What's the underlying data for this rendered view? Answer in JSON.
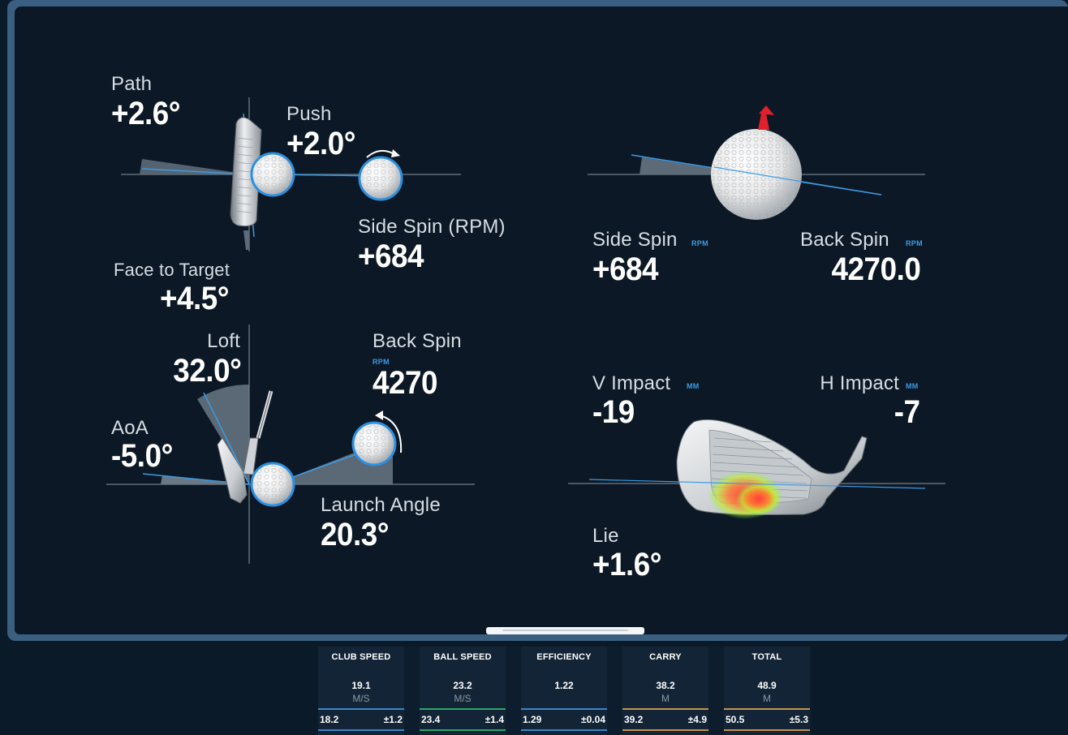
{
  "face_view": {
    "path_label": "Path",
    "path_value": "+2.6°",
    "push_label": "Push",
    "push_value": "+2.0°",
    "side_spin_label": "Side Spin (RPM)",
    "side_spin_value": "+684",
    "face_label": "Face to Target",
    "face_value": "+4.5°"
  },
  "ball_view": {
    "side_spin_label": "Side Spin",
    "side_spin_unit": "RPM",
    "side_spin_value": "+684",
    "back_spin_label": "Back Spin",
    "back_spin_unit": "RPM",
    "back_spin_value": "4270.0"
  },
  "side_view": {
    "loft_label": "Loft",
    "loft_value": "32.0°",
    "aoa_label": "AoA",
    "aoa_value": "-5.0°",
    "back_spin_label": "Back Spin",
    "back_spin_unit": "RPM",
    "back_spin_value": "4270",
    "launch_label": "Launch Angle",
    "launch_value": "20.3°"
  },
  "impact_view": {
    "v_label": "V Impact",
    "v_unit": "MM",
    "v_value": "-19",
    "h_label": "H Impact",
    "h_unit": "MM",
    "h_value": "-7",
    "lie_label": "Lie",
    "lie_value": "+1.6°"
  },
  "stats": [
    {
      "header": "CLUB SPEED",
      "value": "19.1",
      "unit": "M/S",
      "avg": "18.2",
      "dev": "±1.2",
      "color": "#3a86c8"
    },
    {
      "header": "BALL SPEED",
      "value": "23.2",
      "unit": "M/S",
      "avg": "23.4",
      "dev": "±1.4",
      "color": "#29a86a"
    },
    {
      "header": "EFFICIENCY",
      "value": "1.22",
      "unit": "",
      "avg": "1.29",
      "dev": "±0.04",
      "color": "#3a86c8"
    },
    {
      "header": "CARRY",
      "value": "38.2",
      "unit": "M",
      "avg": "39.2",
      "dev": "±4.9",
      "color": "#c8944a"
    },
    {
      "header": "TOTAL",
      "value": "48.9",
      "unit": "M",
      "avg": "50.5",
      "dev": "±5.3",
      "color": "#c8944a"
    }
  ],
  "colors": {
    "accent": "#3d9be3",
    "ball_ring": "#2d8fe0",
    "spin_arrow": "#e0202a"
  }
}
